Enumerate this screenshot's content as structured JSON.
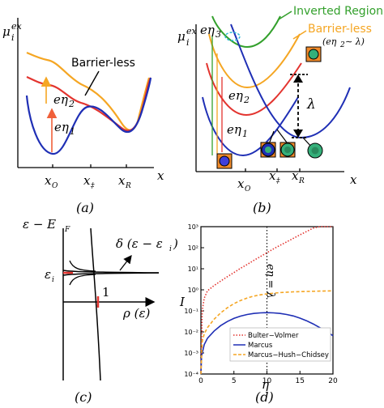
{
  "panel_a": {
    "y_label": "μ",
    "y_sup": "ex",
    "y_sub": "i",
    "barrier_less": "Barrier-less",
    "eta2": "eη",
    "eta2_sub": "2",
    "eta1": "eη",
    "eta1_sub": "1",
    "x_label": "x",
    "ticks": [
      "x",
      "x",
      "x"
    ],
    "tick_subs": [
      "O",
      "‡",
      "R"
    ],
    "caption": "(a)"
  },
  "panel_b": {
    "y_label": "μ",
    "y_sup": "ex",
    "y_sub": "i",
    "inverted": "Inverted Region",
    "barrier_less": "Barrier-less",
    "condition": "(eη",
    "condition_sub": "2",
    "condition_rest": " ∼ λ)",
    "eta3": "eη",
    "eta3_sub": "3",
    "eta2": "eη",
    "eta2_sub": "2",
    "eta1": "eη",
    "eta1_sub": "1",
    "lambda": "λ",
    "x_label": "x",
    "ticks": [
      "x",
      "x",
      "x"
    ],
    "tick_subs": [
      "O",
      "‡",
      "R"
    ],
    "caption": "(b)",
    "colors": {
      "green": "#33a02c",
      "orange": "#f5a623",
      "red": "#e3342f",
      "blue": "#1f2fb5"
    }
  },
  "panel_c": {
    "y_label": "ε − E",
    "y_sub": "F",
    "delta_label": "δ (ε − ε",
    "delta_sub": "i",
    "delta_close": ")",
    "eps_i": "ε",
    "eps_i_sub": "i",
    "one": "1",
    "rho_label": "ρ (ε)",
    "caption": "(c)"
  },
  "panel_d": {
    "y_label": "I",
    "x_label": "η",
    "line_label": "eη = λ",
    "caption": "(d)",
    "legend": [
      "Bulter−Volmer",
      "Marcus",
      "Marcus−Hush−Chidsey"
    ]
  },
  "chart_data": {
    "type": "line",
    "xlabel": "η",
    "ylabel": "I",
    "xlim": [
      0,
      20
    ],
    "ylim": [
      0.0001,
      1000
    ],
    "log_y": true,
    "x_ticks": [
      "0",
      "5",
      "10",
      "15",
      "20"
    ],
    "y_ticks": [
      "10⁻⁴",
      "10⁻³",
      "10⁻²",
      "10⁻¹",
      "10⁰",
      "10¹",
      "10²",
      "10³"
    ],
    "vline_x": 10,
    "series": [
      {
        "name": "Bulter−Volmer",
        "color": "#e3342f",
        "style": "dotted",
        "x": [
          0,
          0.2,
          0.5,
          1,
          2,
          3,
          4,
          5,
          6,
          7,
          8,
          9,
          10,
          11,
          12,
          13,
          14,
          15,
          16,
          17,
          18,
          19,
          20
        ],
        "y": [
          0.0001,
          0.1,
          0.4,
          0.9,
          1.6,
          2.6,
          4.2,
          6.6,
          10.5,
          16,
          25,
          38,
          58,
          88,
          130,
          190,
          280,
          410,
          590,
          850,
          1000,
          1000,
          1000
        ]
      },
      {
        "name": "Marcus",
        "color": "#1f2fb5",
        "style": "solid",
        "x": [
          0,
          0.1,
          0.5,
          1,
          2,
          3,
          4,
          5,
          6,
          7,
          8,
          9,
          10,
          11,
          12,
          13,
          14,
          15,
          16,
          17,
          18,
          19,
          20
        ],
        "y": [
          0.0001,
          0.0007,
          0.0025,
          0.005,
          0.011,
          0.02,
          0.031,
          0.044,
          0.056,
          0.067,
          0.075,
          0.08,
          0.082,
          0.08,
          0.075,
          0.067,
          0.057,
          0.045,
          0.034,
          0.024,
          0.016,
          0.0105,
          0.0066
        ]
      },
      {
        "name": "Marcus−Hush−Chidsey",
        "color": "#f5a623",
        "style": "dashed",
        "x": [
          0,
          0.2,
          0.5,
          1,
          2,
          3,
          4,
          5,
          6,
          7,
          8,
          9,
          10,
          12,
          14,
          16,
          18,
          20
        ],
        "y": [
          0.0001,
          0.0035,
          0.008,
          0.016,
          0.04,
          0.08,
          0.14,
          0.22,
          0.31,
          0.41,
          0.5,
          0.58,
          0.64,
          0.74,
          0.8,
          0.84,
          0.87,
          0.89
        ]
      }
    ]
  }
}
